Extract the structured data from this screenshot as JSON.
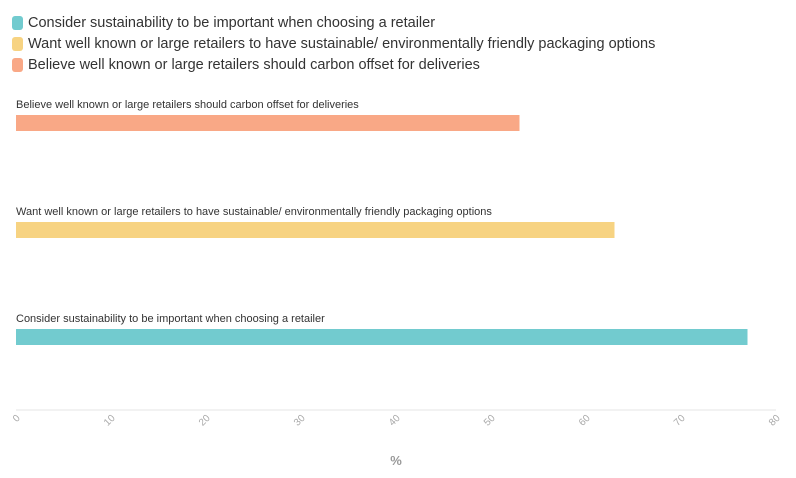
{
  "chart_data": {
    "type": "bar",
    "orientation": "horizontal",
    "title": "",
    "xlabel": "%",
    "ylabel": "",
    "xlim": [
      0,
      80
    ],
    "xticks": [
      0,
      10,
      20,
      30,
      40,
      50,
      60,
      70,
      80
    ],
    "grid": false,
    "legend_position": "top-left",
    "categories": [
      "Believe well known or large retailers should carbon offset for deliveries",
      "Want well known or large retailers to have sustainable/ environmentally friendly packaging options",
      "Consider sustainability to be important when choosing a retailer"
    ],
    "values": [
      53,
      63,
      77
    ],
    "colors": [
      "#f9a886",
      "#f7d382",
      "#72cbcf"
    ]
  },
  "legend": [
    {
      "label": "Consider sustainability to be important when choosing a retailer",
      "color": "#72cbcf"
    },
    {
      "label": "Want well known or large retailers to have sustainable/ environmentally friendly packaging options",
      "color": "#f7d382"
    },
    {
      "label": "Believe well known or large retailers should carbon offset for deliveries",
      "color": "#f9a886"
    }
  ]
}
